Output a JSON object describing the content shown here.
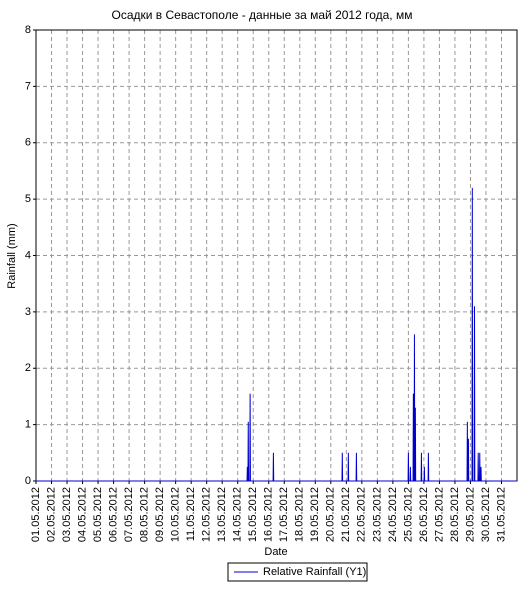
{
  "chart_data": {
    "type": "line",
    "title": "Осадки в Севастополе - данные за май 2012 года, мм",
    "x_label": "Date",
    "y_label": "Rainfall (mm)",
    "xlim": [
      1,
      32
    ],
    "ylim": [
      0,
      8
    ],
    "yticks": [
      0,
      1,
      2,
      3,
      4,
      5,
      6,
      7,
      8
    ],
    "xticks": [
      {
        "value": 1,
        "label": "01.05.2012"
      },
      {
        "value": 2,
        "label": "02.05.2012"
      },
      {
        "value": 3,
        "label": "03.05.2012"
      },
      {
        "value": 4,
        "label": "04.05.2012"
      },
      {
        "value": 5,
        "label": "05.05.2012"
      },
      {
        "value": 6,
        "label": "06.05.2012"
      },
      {
        "value": 7,
        "label": "07.05.2012"
      },
      {
        "value": 8,
        "label": "08.05.2012"
      },
      {
        "value": 9,
        "label": "09.05.2012"
      },
      {
        "value": 10,
        "label": "10.05.2012"
      },
      {
        "value": 11,
        "label": "11.05.2012"
      },
      {
        "value": 12,
        "label": "12.05.2012"
      },
      {
        "value": 13,
        "label": "13.05.2012"
      },
      {
        "value": 14,
        "label": "14.05.2012"
      },
      {
        "value": 15,
        "label": "15.05.2012"
      },
      {
        "value": 16,
        "label": "16.05.2012"
      },
      {
        "value": 17,
        "label": "17.05.2012"
      },
      {
        "value": 18,
        "label": "18.05.2012"
      },
      {
        "value": 19,
        "label": "19.05.2012"
      },
      {
        "value": 20,
        "label": "20.05.2012"
      },
      {
        "value": 21,
        "label": "21.05.2012"
      },
      {
        "value": 22,
        "label": "22.05.2012"
      },
      {
        "value": 23,
        "label": "23.05.2012"
      },
      {
        "value": 24,
        "label": "24.05.2012"
      },
      {
        "value": 25,
        "label": "25.05.2012"
      },
      {
        "value": 26,
        "label": "26.05.2012"
      },
      {
        "value": 27,
        "label": "27.05.2012"
      },
      {
        "value": 28,
        "label": "28.05.2012"
      },
      {
        "value": 29,
        "label": "29.05.2012"
      },
      {
        "value": 30,
        "label": "30.05.2012"
      },
      {
        "value": 31,
        "label": "31.05.2012"
      }
    ],
    "grid": true,
    "legend": "bottom",
    "series": [
      {
        "name": "Relative Rainfall (Y1)",
        "color": "#0000cc",
        "x": [
          1,
          14.6,
          14.62,
          14.64,
          14.66,
          14.68,
          14.7,
          14.78,
          14.8,
          14.82,
          16.28,
          16.3,
          16.32,
          20.72,
          20.74,
          20.76,
          21.11,
          21.13,
          21.15,
          21.63,
          21.65,
          21.67,
          24.98,
          25.0,
          25.02,
          25.11,
          25.13,
          25.15,
          25.3,
          25.32,
          25.34,
          25.37,
          25.39,
          25.41,
          25.43,
          25.45,
          25.47,
          25.82,
          25.84,
          25.86,
          26.01,
          26.03,
          26.05,
          26.27,
          26.29,
          26.31,
          28.78,
          28.8,
          28.82,
          28.85,
          28.87,
          28.89,
          29.1,
          29.12,
          29.14,
          29.24,
          29.26,
          29.28,
          29.48,
          29.5,
          29.52,
          29.58,
          29.6,
          29.62,
          29.66,
          29.68,
          29.7,
          32
        ],
        "values": [
          0,
          0,
          0.25,
          0,
          0,
          1.05,
          0,
          0,
          1.55,
          0,
          0,
          0.5,
          0,
          0,
          0.5,
          0,
          0,
          0.5,
          0,
          0,
          0.5,
          0,
          0,
          0.5,
          0,
          0,
          0.25,
          0,
          0,
          1.55,
          0,
          0,
          2.6,
          0,
          0,
          1.3,
          0,
          0,
          0.5,
          0,
          0,
          0.25,
          0,
          0,
          0.5,
          0,
          0,
          1.05,
          0,
          0,
          0.75,
          0,
          0,
          5.2,
          0,
          0,
          3.1,
          0,
          0,
          0.5,
          0,
          0,
          0.5,
          0,
          0,
          0.25,
          0,
          0
        ]
      }
    ]
  }
}
